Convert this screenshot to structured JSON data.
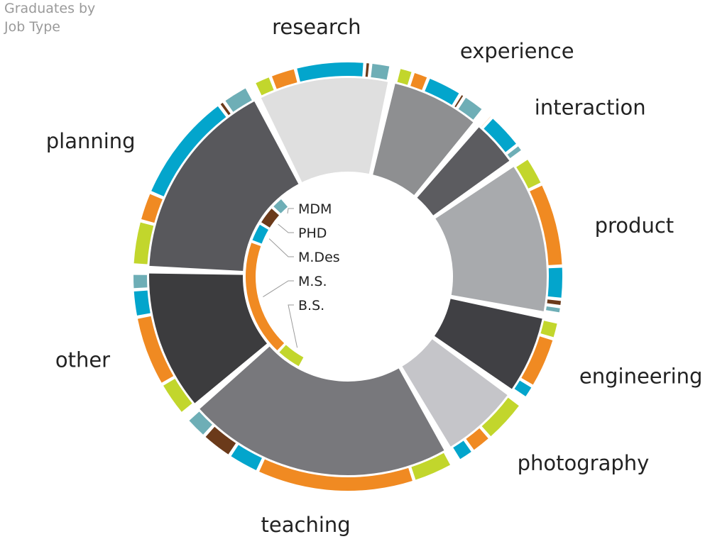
{
  "chart_data": {
    "type": "donut",
    "title_lines": [
      "Graduates by",
      "Job Type"
    ],
    "degrees": [
      "B.S.",
      "M.S.",
      "M.Des",
      "PHD",
      "MDM"
    ],
    "degree_colors": {
      "B.S.": "#c2d62c",
      "M.S.": "#f08a22",
      "M.Des": "#03a5cc",
      "PHD": "#6b3a1a",
      "MDM": "#6eaeb6"
    },
    "categories": [
      {
        "name": "planning",
        "total": 20,
        "color": "#58585c",
        "breakdown": {
          "B.S.": 3,
          "M.S.": 2,
          "M.Des": 7.5,
          "PHD": 0.4,
          "MDM": 1.8
        }
      },
      {
        "name": "research",
        "total": 13,
        "color": "#dfdfdf",
        "breakdown": {
          "B.S.": 1.2,
          "M.S.": 1.8,
          "M.Des": 4.8,
          "PHD": 0.4,
          "MDM": 1.4
        }
      },
      {
        "name": "experience",
        "total": 9,
        "color": "#8e8f91",
        "breakdown": {
          "B.S.": 0.9,
          "M.S.": 1,
          "M.Des": 2.2,
          "PHD": 0.3,
          "MDM": 1.4
        }
      },
      {
        "name": "interaction",
        "total": 5,
        "color": "#5c5c60",
        "breakdown": {
          "B.S.": 0,
          "M.S.": 0.2,
          "M.Des": 2.3,
          "PHD": 0,
          "MDM": 0.5
        }
      },
      {
        "name": "product",
        "total": 15,
        "color": "#a8aaad",
        "breakdown": {
          "B.S.": 1.6,
          "M.S.": 4.6,
          "M.Des": 1.8,
          "PHD": 0.4,
          "MDM": 0.4
        }
      },
      {
        "name": "engineering",
        "total": 8,
        "color": "#404044",
        "breakdown": {
          "B.S.": 1,
          "M.S.": 3,
          "M.Des": 0.8,
          "PHD": 0,
          "MDM": 0
        }
      },
      {
        "name": "photography",
        "total": 8,
        "color": "#c5c5c9",
        "breakdown": {
          "B.S.": 2.7,
          "M.S.": 1.3,
          "M.Des": 1,
          "PHD": 0,
          "MDM": 0
        }
      },
      {
        "name": "teaching",
        "total": 26,
        "color": "#78787c",
        "breakdown": {
          "B.S.": 3.2,
          "M.S.": 12.5,
          "M.Des": 2.5,
          "PHD": 2.5,
          "MDM": 1.8
        }
      },
      {
        "name": "other",
        "total": 14,
        "color": "#3c3c3e",
        "breakdown": {
          "B.S.": 3.2,
          "M.S.": 6.5,
          "M.Des": 2.5,
          "PHD": 0,
          "MDM": 1.5
        }
      }
    ],
    "overall_degree_share": {
      "B.S.": 2,
      "M.S.": 9,
      "M.Des": 1.5,
      "PHD": 1.5,
      "MDM": 1
    }
  }
}
